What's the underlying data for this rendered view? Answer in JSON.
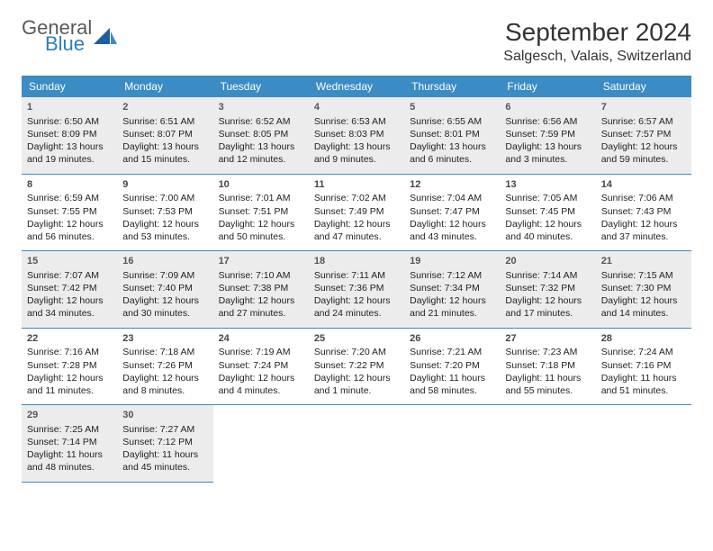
{
  "logo": {
    "general": "General",
    "blue": "Blue"
  },
  "title": "September 2024",
  "location": "Salgesch, Valais, Switzerland",
  "weekdays": [
    "Sunday",
    "Monday",
    "Tuesday",
    "Wednesday",
    "Thursday",
    "Friday",
    "Saturday"
  ],
  "colors": {
    "header_bg": "#3b8bc5",
    "header_text": "#ffffff",
    "alt_row_bg": "#ececec",
    "rule": "#3b8bc5",
    "text": "#222222"
  },
  "typography": {
    "title_fontsize": 28,
    "location_fontsize": 16,
    "dayhead_fontsize": 12,
    "cell_fontsize": 10.5
  },
  "weeks": [
    {
      "alt": true,
      "days": [
        {
          "num": "1",
          "sunrise": "Sunrise: 6:50 AM",
          "sunset": "Sunset: 8:09 PM",
          "daylight1": "Daylight: 13 hours",
          "daylight2": "and 19 minutes."
        },
        {
          "num": "2",
          "sunrise": "Sunrise: 6:51 AM",
          "sunset": "Sunset: 8:07 PM",
          "daylight1": "Daylight: 13 hours",
          "daylight2": "and 15 minutes."
        },
        {
          "num": "3",
          "sunrise": "Sunrise: 6:52 AM",
          "sunset": "Sunset: 8:05 PM",
          "daylight1": "Daylight: 13 hours",
          "daylight2": "and 12 minutes."
        },
        {
          "num": "4",
          "sunrise": "Sunrise: 6:53 AM",
          "sunset": "Sunset: 8:03 PM",
          "daylight1": "Daylight: 13 hours",
          "daylight2": "and 9 minutes."
        },
        {
          "num": "5",
          "sunrise": "Sunrise: 6:55 AM",
          "sunset": "Sunset: 8:01 PM",
          "daylight1": "Daylight: 13 hours",
          "daylight2": "and 6 minutes."
        },
        {
          "num": "6",
          "sunrise": "Sunrise: 6:56 AM",
          "sunset": "Sunset: 7:59 PM",
          "daylight1": "Daylight: 13 hours",
          "daylight2": "and 3 minutes."
        },
        {
          "num": "7",
          "sunrise": "Sunrise: 6:57 AM",
          "sunset": "Sunset: 7:57 PM",
          "daylight1": "Daylight: 12 hours",
          "daylight2": "and 59 minutes."
        }
      ]
    },
    {
      "alt": false,
      "days": [
        {
          "num": "8",
          "sunrise": "Sunrise: 6:59 AM",
          "sunset": "Sunset: 7:55 PM",
          "daylight1": "Daylight: 12 hours",
          "daylight2": "and 56 minutes."
        },
        {
          "num": "9",
          "sunrise": "Sunrise: 7:00 AM",
          "sunset": "Sunset: 7:53 PM",
          "daylight1": "Daylight: 12 hours",
          "daylight2": "and 53 minutes."
        },
        {
          "num": "10",
          "sunrise": "Sunrise: 7:01 AM",
          "sunset": "Sunset: 7:51 PM",
          "daylight1": "Daylight: 12 hours",
          "daylight2": "and 50 minutes."
        },
        {
          "num": "11",
          "sunrise": "Sunrise: 7:02 AM",
          "sunset": "Sunset: 7:49 PM",
          "daylight1": "Daylight: 12 hours",
          "daylight2": "and 47 minutes."
        },
        {
          "num": "12",
          "sunrise": "Sunrise: 7:04 AM",
          "sunset": "Sunset: 7:47 PM",
          "daylight1": "Daylight: 12 hours",
          "daylight2": "and 43 minutes."
        },
        {
          "num": "13",
          "sunrise": "Sunrise: 7:05 AM",
          "sunset": "Sunset: 7:45 PM",
          "daylight1": "Daylight: 12 hours",
          "daylight2": "and 40 minutes."
        },
        {
          "num": "14",
          "sunrise": "Sunrise: 7:06 AM",
          "sunset": "Sunset: 7:43 PM",
          "daylight1": "Daylight: 12 hours",
          "daylight2": "and 37 minutes."
        }
      ]
    },
    {
      "alt": true,
      "days": [
        {
          "num": "15",
          "sunrise": "Sunrise: 7:07 AM",
          "sunset": "Sunset: 7:42 PM",
          "daylight1": "Daylight: 12 hours",
          "daylight2": "and 34 minutes."
        },
        {
          "num": "16",
          "sunrise": "Sunrise: 7:09 AM",
          "sunset": "Sunset: 7:40 PM",
          "daylight1": "Daylight: 12 hours",
          "daylight2": "and 30 minutes."
        },
        {
          "num": "17",
          "sunrise": "Sunrise: 7:10 AM",
          "sunset": "Sunset: 7:38 PM",
          "daylight1": "Daylight: 12 hours",
          "daylight2": "and 27 minutes."
        },
        {
          "num": "18",
          "sunrise": "Sunrise: 7:11 AM",
          "sunset": "Sunset: 7:36 PM",
          "daylight1": "Daylight: 12 hours",
          "daylight2": "and 24 minutes."
        },
        {
          "num": "19",
          "sunrise": "Sunrise: 7:12 AM",
          "sunset": "Sunset: 7:34 PM",
          "daylight1": "Daylight: 12 hours",
          "daylight2": "and 21 minutes."
        },
        {
          "num": "20",
          "sunrise": "Sunrise: 7:14 AM",
          "sunset": "Sunset: 7:32 PM",
          "daylight1": "Daylight: 12 hours",
          "daylight2": "and 17 minutes."
        },
        {
          "num": "21",
          "sunrise": "Sunrise: 7:15 AM",
          "sunset": "Sunset: 7:30 PM",
          "daylight1": "Daylight: 12 hours",
          "daylight2": "and 14 minutes."
        }
      ]
    },
    {
      "alt": false,
      "days": [
        {
          "num": "22",
          "sunrise": "Sunrise: 7:16 AM",
          "sunset": "Sunset: 7:28 PM",
          "daylight1": "Daylight: 12 hours",
          "daylight2": "and 11 minutes."
        },
        {
          "num": "23",
          "sunrise": "Sunrise: 7:18 AM",
          "sunset": "Sunset: 7:26 PM",
          "daylight1": "Daylight: 12 hours",
          "daylight2": "and 8 minutes."
        },
        {
          "num": "24",
          "sunrise": "Sunrise: 7:19 AM",
          "sunset": "Sunset: 7:24 PM",
          "daylight1": "Daylight: 12 hours",
          "daylight2": "and 4 minutes."
        },
        {
          "num": "25",
          "sunrise": "Sunrise: 7:20 AM",
          "sunset": "Sunset: 7:22 PM",
          "daylight1": "Daylight: 12 hours",
          "daylight2": "and 1 minute."
        },
        {
          "num": "26",
          "sunrise": "Sunrise: 7:21 AM",
          "sunset": "Sunset: 7:20 PM",
          "daylight1": "Daylight: 11 hours",
          "daylight2": "and 58 minutes."
        },
        {
          "num": "27",
          "sunrise": "Sunrise: 7:23 AM",
          "sunset": "Sunset: 7:18 PM",
          "daylight1": "Daylight: 11 hours",
          "daylight2": "and 55 minutes."
        },
        {
          "num": "28",
          "sunrise": "Sunrise: 7:24 AM",
          "sunset": "Sunset: 7:16 PM",
          "daylight1": "Daylight: 11 hours",
          "daylight2": "and 51 minutes."
        }
      ]
    },
    {
      "alt": true,
      "days": [
        {
          "num": "29",
          "sunrise": "Sunrise: 7:25 AM",
          "sunset": "Sunset: 7:14 PM",
          "daylight1": "Daylight: 11 hours",
          "daylight2": "and 48 minutes."
        },
        {
          "num": "30",
          "sunrise": "Sunrise: 7:27 AM",
          "sunset": "Sunset: 7:12 PM",
          "daylight1": "Daylight: 11 hours",
          "daylight2": "and 45 minutes."
        },
        null,
        null,
        null,
        null,
        null
      ]
    }
  ]
}
